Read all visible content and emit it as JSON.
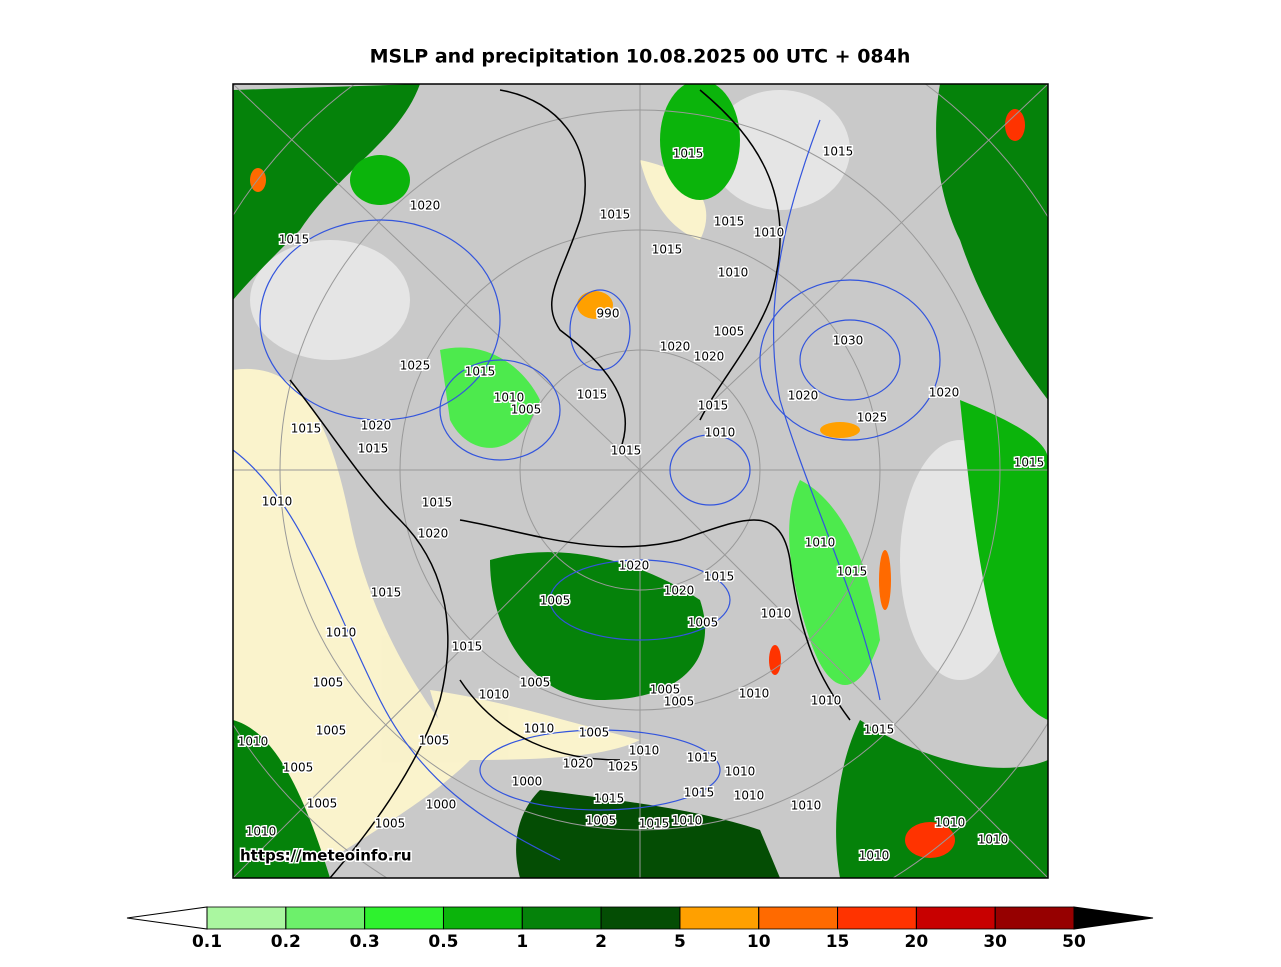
{
  "title": "MSLP and precipitation 10.08.2025 00 UTC + 084h",
  "watermark": "https://meteoinfo.ru",
  "isobar_labels": [
    "1015",
    "1015",
    "1020",
    "1015",
    "1015",
    "1015",
    "1010",
    "1015",
    "1010",
    "990",
    "1005",
    "1030",
    "1020",
    "1020",
    "1025",
    "1015",
    "1010",
    "1005",
    "1015",
    "1020",
    "1020",
    "1015",
    "1025",
    "1015",
    "1020",
    "1015",
    "1010",
    "1015",
    "1015",
    "1010",
    "1015",
    "1020",
    "1010",
    "1015",
    "1020",
    "1015",
    "1020",
    "1005",
    "1015",
    "1010",
    "1005",
    "1010",
    "1015",
    "1005",
    "1010",
    "1005",
    "1005",
    "1005",
    "1010",
    "1010",
    "1005",
    "1015",
    "1010",
    "1005",
    "1010",
    "1005",
    "1010",
    "1015",
    "1020",
    "1025",
    "1010",
    "1005",
    "1000",
    "1015",
    "1010",
    "1015",
    "1005",
    "1000",
    "1010",
    "1005",
    "1015",
    "1010",
    "1010",
    "1005",
    "1010",
    "1010",
    "1010"
  ],
  "colorbar": {
    "ticks": [
      0.1,
      0.2,
      0.3,
      0.5,
      1,
      2,
      5,
      10,
      15,
      20,
      30,
      50
    ],
    "colors": [
      "#aaf7a0",
      "#6df06b",
      "#2ef22e",
      "#0bb40b",
      "#05820a",
      "#044d04",
      "#ffa000",
      "#ff6a00",
      "#ff3300",
      "#c80000",
      "#960000"
    ]
  }
}
